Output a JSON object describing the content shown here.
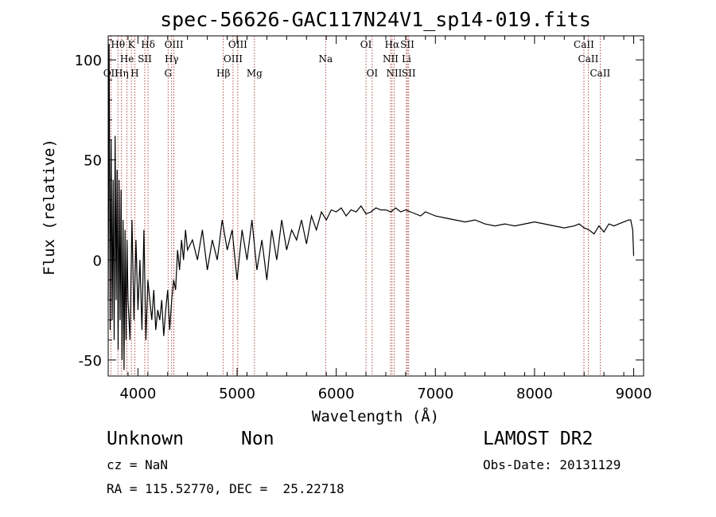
{
  "chart_data": {
    "type": "line",
    "title": "spec-56626-GAC117N24V1_sp14-019.fits",
    "xlabel": "Wavelength (Å)",
    "ylabel": "Flux (relative)",
    "xlim": [
      3700,
      9100
    ],
    "ylim": [
      -58,
      112
    ],
    "x_ticks": [
      4000,
      5000,
      6000,
      7000,
      8000,
      9000
    ],
    "y_ticks": [
      -50,
      0,
      50,
      100
    ],
    "series": [
      {
        "x": [
          3700,
          3710,
          3720,
          3730,
          3740,
          3750,
          3760,
          3770,
          3780,
          3790,
          3800,
          3810,
          3820,
          3830,
          3840,
          3850,
          3860,
          3870,
          3880,
          3890,
          3900,
          3920,
          3940,
          3960,
          3980,
          4000,
          4020,
          4040,
          4060,
          4080,
          4100,
          4120,
          4140,
          4160,
          4180,
          4200,
          4220,
          4240,
          4260,
          4280,
          4300,
          4320,
          4340,
          4360,
          4380,
          4400,
          4420,
          4440,
          4460,
          4480,
          4500,
          4550,
          4600,
          4650,
          4700,
          4750,
          4800,
          4850,
          4900,
          4950,
          5000,
          5050,
          5100,
          5150,
          5200,
          5250,
          5300,
          5350,
          5400,
          5450,
          5500,
          5550,
          5600,
          5650,
          5700,
          5750,
          5800,
          5850,
          5900,
          5950,
          6000,
          6050,
          6100,
          6150,
          6200,
          6250,
          6300,
          6350,
          6400,
          6450,
          6500,
          6550,
          6600,
          6650,
          6700,
          6750,
          6800,
          6850,
          6900,
          6950,
          7000,
          7100,
          7200,
          7300,
          7400,
          7500,
          7600,
          7700,
          7800,
          7900,
          8000,
          8100,
          8200,
          8300,
          8400,
          8450,
          8500,
          8550,
          8600,
          8650,
          8700,
          8750,
          8800,
          8850,
          8900,
          8950,
          8970,
          8990,
          9000
        ],
        "y": [
          -20,
          108,
          -35,
          60,
          -30,
          40,
          -40,
          62,
          -20,
          45,
          -45,
          40,
          -30,
          35,
          -50,
          20,
          -55,
          15,
          -40,
          10,
          -20,
          -40,
          20,
          -30,
          10,
          -25,
          0,
          -35,
          15,
          -40,
          -10,
          -20,
          -30,
          -15,
          -35,
          -25,
          -30,
          -20,
          -38,
          -25,
          -15,
          -35,
          -20,
          -10,
          -15,
          5,
          -5,
          10,
          0,
          15,
          5,
          10,
          0,
          15,
          -5,
          10,
          0,
          20,
          5,
          15,
          -10,
          15,
          0,
          20,
          -5,
          10,
          -10,
          15,
          0,
          20,
          5,
          15,
          10,
          20,
          8,
          22,
          15,
          24,
          20,
          25,
          24,
          26,
          22,
          25,
          24,
          27,
          23,
          24,
          26,
          25,
          25,
          24,
          26,
          24,
          25,
          24,
          23,
          22,
          24,
          23,
          22,
          21,
          20,
          19,
          20,
          18,
          17,
          18,
          17,
          18,
          19,
          18,
          17,
          16,
          17,
          18,
          16,
          15,
          13,
          17,
          14,
          18,
          17,
          18,
          19,
          20,
          20,
          15,
          2
        ]
      }
    ],
    "lines": [
      {
        "label": "Hθ",
        "x": 3798,
        "row": 0
      },
      {
        "label": "K",
        "x": 3934,
        "row": 0
      },
      {
        "label": "Hδ",
        "x": 4102,
        "row": 0
      },
      {
        "label": "OIII",
        "x": 4363,
        "row": 0
      },
      {
        "label": "OIII",
        "x": 5007,
        "row": 0
      },
      {
        "label": "OI",
        "x": 6300,
        "row": 0
      },
      {
        "label": "Hα",
        "x": 6563,
        "row": 0
      },
      {
        "label": "SII",
        "x": 6717,
        "row": 0
      },
      {
        "label": "CaII",
        "x": 8498,
        "row": 0
      },
      {
        "label": "He",
        "x": 3889,
        "row": 1
      },
      {
        "label": "SII",
        "x": 4069,
        "row": 1
      },
      {
        "label": "Hγ",
        "x": 4340,
        "row": 1
      },
      {
        "label": "OIII",
        "x": 4959,
        "row": 1
      },
      {
        "label": "Na",
        "x": 5893,
        "row": 1
      },
      {
        "label": "NII",
        "x": 6548,
        "row": 1
      },
      {
        "label": "Li",
        "x": 6708,
        "row": 1
      },
      {
        "label": "CaII",
        "x": 8542,
        "row": 1
      },
      {
        "label": "OII",
        "x": 3727,
        "row": 2
      },
      {
        "label": "Hη",
        "x": 3835,
        "row": 2
      },
      {
        "label": "H",
        "x": 3968,
        "row": 2
      },
      {
        "label": "G",
        "x": 4304,
        "row": 2
      },
      {
        "label": "Hβ",
        "x": 4861,
        "row": 2
      },
      {
        "label": "Mg",
        "x": 5175,
        "row": 2
      },
      {
        "label": "OI",
        "x": 6363,
        "row": 2
      },
      {
        "label": "NII",
        "x": 6584,
        "row": 2
      },
      {
        "label": "SII",
        "x": 6731,
        "row": 2
      },
      {
        "label": "CaII",
        "x": 8662,
        "row": 2
      }
    ],
    "line_color": "#a02020"
  },
  "info": {
    "classification": "Unknown",
    "subclass": "Non",
    "cz": "cz = NaN",
    "radec": "RA = 115.52770, DEC =  25.22718",
    "survey": "LAMOST DR2",
    "obs_date": "Obs-Date: 20131129"
  }
}
